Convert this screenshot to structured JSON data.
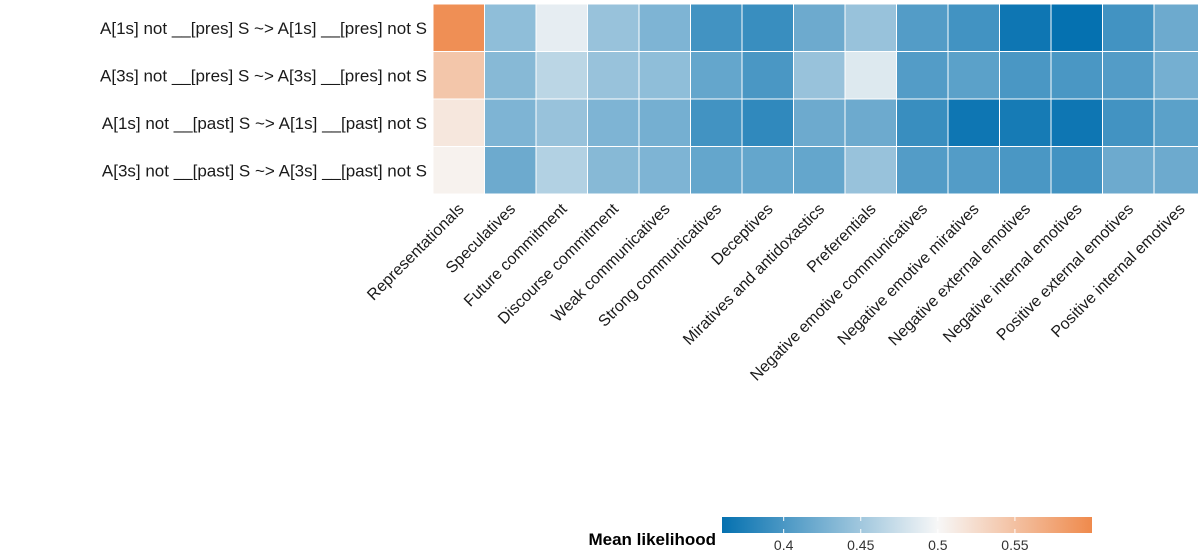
{
  "chart_data": {
    "type": "heatmap",
    "rows": [
      "A[1s] not __[pres] S ~> A[1s] __[pres] not S",
      "A[3s] not __[pres] S ~> A[3s] __[pres] not S",
      "A[1s] not __[past] S ~> A[1s] __[past] not S",
      "A[3s] not __[past] S ~> A[3s] __[past] not S"
    ],
    "columns": [
      "Representationals",
      "Speculatives",
      "Future commitment",
      "Discourse commitment",
      "Weak communicatives",
      "Strong communicatives",
      "Deceptives",
      "Miratives and antidoxastics",
      "Preferentials",
      "Negative emotive communicatives",
      "Negative emotive miratives",
      "Negative external emotives",
      "Negative internal emotives",
      "Positive external emotives",
      "Positive internal emotives"
    ],
    "values": [
      [
        0.595,
        0.44,
        0.49,
        0.445,
        0.43,
        0.395,
        0.39,
        0.42,
        0.445,
        0.405,
        0.395,
        0.365,
        0.36,
        0.395,
        0.42
      ],
      [
        0.545,
        0.435,
        0.465,
        0.445,
        0.44,
        0.415,
        0.4,
        0.445,
        0.485,
        0.405,
        0.41,
        0.4,
        0.4,
        0.405,
        0.425
      ],
      [
        0.515,
        0.43,
        0.445,
        0.43,
        0.425,
        0.395,
        0.385,
        0.42,
        0.42,
        0.39,
        0.365,
        0.37,
        0.365,
        0.395,
        0.41
      ],
      [
        0.505,
        0.42,
        0.46,
        0.435,
        0.43,
        0.415,
        0.415,
        0.415,
        0.445,
        0.405,
        0.405,
        0.4,
        0.395,
        0.42,
        0.42
      ]
    ],
    "legend": {
      "title": "Mean likelihood",
      "ticks": [
        "0.4",
        "0.45",
        "0.5",
        "0.55"
      ],
      "min": 0.36,
      "max": 0.6,
      "midpoint": 0.5,
      "low_color": "#0571b0",
      "mid_color": "#f7f7f7",
      "high_color": "#ef8a4c"
    },
    "grid": false,
    "legend_position": "bottom"
  }
}
